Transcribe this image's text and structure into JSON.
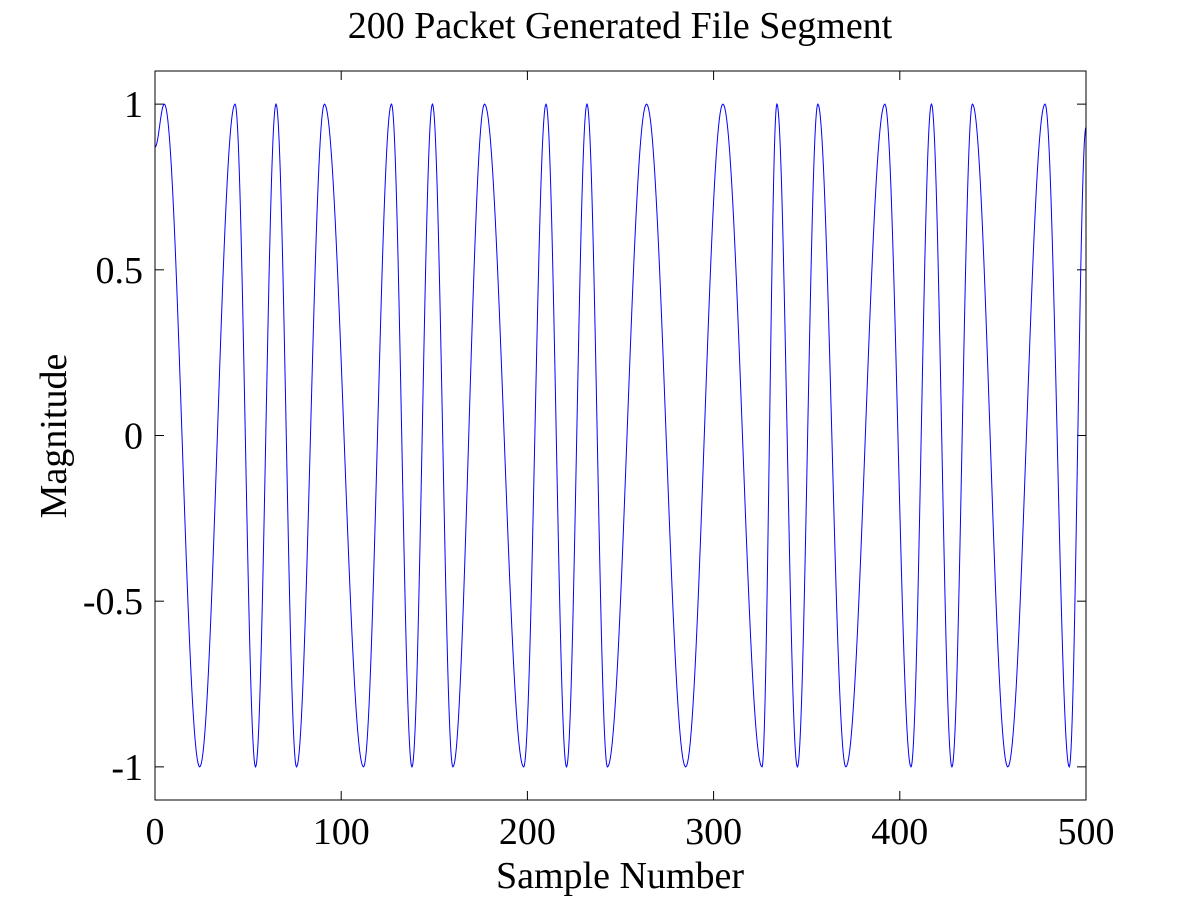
{
  "chart_data": {
    "type": "line",
    "title": "200 Packet Generated File Segment",
    "xlabel": "Sample Number",
    "ylabel": "Magnitude",
    "xlim": [
      0,
      500
    ],
    "ylim": [
      -1.1,
      1.1
    ],
    "xticks": [
      0,
      100,
      200,
      300,
      400,
      500
    ],
    "xtick_labels": [
      "0",
      "100",
      "200",
      "300",
      "400",
      "500"
    ],
    "yticks": [
      1,
      0.5,
      0,
      -0.5,
      -1
    ],
    "ytick_labels": [
      "1",
      "0.5",
      "0",
      "-0.5",
      "-1"
    ],
    "grid": false,
    "legend": "none",
    "line_color": "#0000ff",
    "series": [
      {
        "x": [
          0,
          5,
          24,
          43,
          54,
          65,
          76,
          91,
          112,
          127,
          138,
          149,
          160,
          177,
          198,
          210,
          221,
          232,
          243,
          264,
          285,
          305,
          326,
          334,
          345,
          356,
          371,
          392,
          406,
          417,
          428,
          439,
          458,
          478,
          491,
          500
        ],
        "y": [
          0.87,
          1,
          -1,
          1,
          -1,
          1,
          -1,
          1,
          -1,
          1,
          -1,
          1,
          -1,
          1,
          -1,
          1,
          -1,
          1,
          -1,
          1,
          -1,
          1,
          -1,
          1,
          -1,
          1,
          -1,
          1,
          -1,
          1,
          -1,
          1,
          -1,
          1,
          -1,
          0.93
        ]
      }
    ]
  }
}
